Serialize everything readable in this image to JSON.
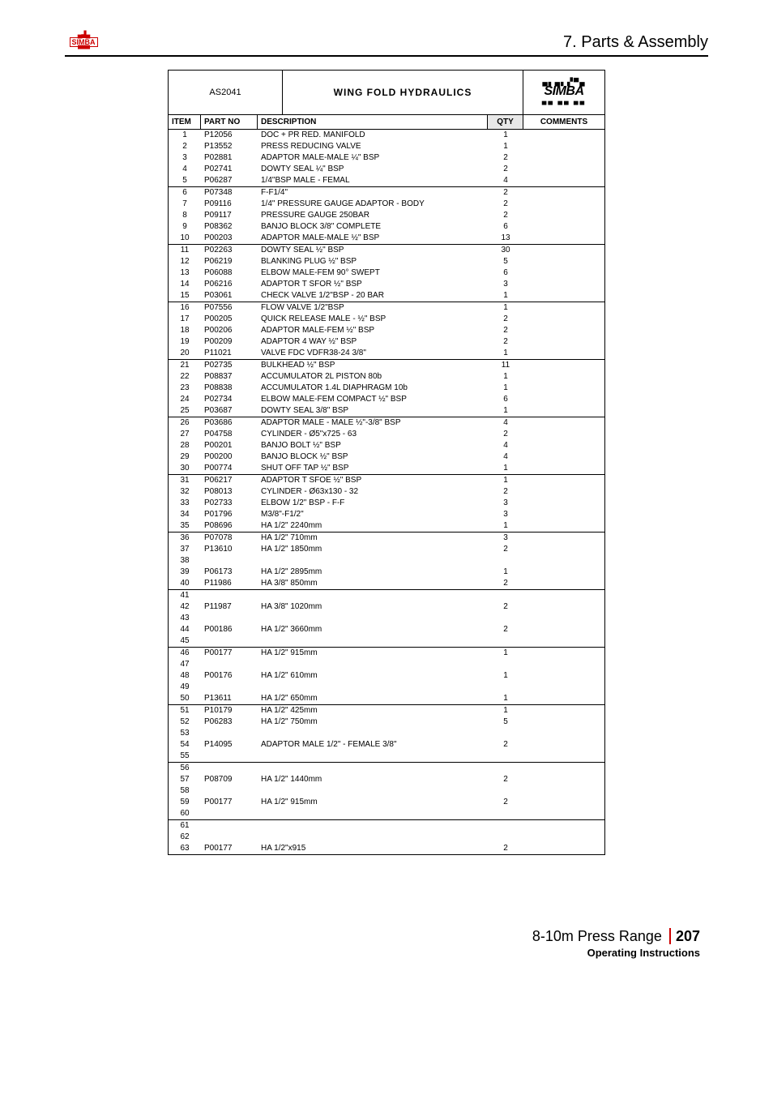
{
  "header": {
    "section_title": "7. Parts & Assembly",
    "logo_small_name": "SIMBA"
  },
  "table_header": {
    "as_code": "AS2041",
    "title": "WING FOLD HYDRAULICS",
    "logo_name": "SIMBA"
  },
  "columns": {
    "item": "ITEM",
    "part": "PART NO",
    "desc": "DESCRIPTION",
    "qty": "QTY",
    "comm": "COMMENTS"
  },
  "groups": [
    [
      {
        "item": "1",
        "part": "P12056",
        "desc": "DOC + PR RED. MANIFOLD",
        "qty": "1"
      },
      {
        "item": "2",
        "part": "P13552",
        "desc": "PRESS REDUCING VALVE",
        "qty": "1"
      },
      {
        "item": "3",
        "part": "P02881",
        "desc": "ADAPTOR MALE-MALE ¼\" BSP",
        "qty": "2"
      },
      {
        "item": "4",
        "part": "P02741",
        "desc": "DOWTY SEAL ¼\" BSP",
        "qty": "2"
      },
      {
        "item": "5",
        "part": "P06287",
        "desc": "1/4\"BSP MALE - FEMAL",
        "qty": "4"
      }
    ],
    [
      {
        "item": "6",
        "part": "P07348",
        "desc": "F-F1/4\"",
        "qty": "2"
      },
      {
        "item": "7",
        "part": "P09116",
        "desc": "1/4\" PRESSURE GAUGE ADAPTOR - BODY",
        "qty": "2"
      },
      {
        "item": "8",
        "part": "P09117",
        "desc": "PRESSURE GAUGE 250BAR",
        "qty": "2"
      },
      {
        "item": "9",
        "part": "P08362",
        "desc": "BANJO BLOCK 3/8\" COMPLETE",
        "qty": "6"
      },
      {
        "item": "10",
        "part": "P00203",
        "desc": "ADAPTOR MALE-MALE ½\" BSP",
        "qty": "13"
      }
    ],
    [
      {
        "item": "11",
        "part": "P02263",
        "desc": "DOWTY SEAL ½\" BSP",
        "qty": "30"
      },
      {
        "item": "12",
        "part": "P06219",
        "desc": "BLANKING PLUG ½\" BSP",
        "qty": "5"
      },
      {
        "item": "13",
        "part": "P06088",
        "desc": "ELBOW MALE-FEM 90° SWEPT",
        "qty": "6"
      },
      {
        "item": "14",
        "part": "P06216",
        "desc": "ADAPTOR T SFOR ½\" BSP",
        "qty": "3"
      },
      {
        "item": "15",
        "part": "P03061",
        "desc": "CHECK VALVE 1/2\"BSP - 20 BAR",
        "qty": "1"
      }
    ],
    [
      {
        "item": "16",
        "part": "P07556",
        "desc": "FLOW VALVE 1/2\"BSP",
        "qty": "1"
      },
      {
        "item": "17",
        "part": "P00205",
        "desc": "QUICK RELEASE MALE - ½\" BSP",
        "qty": "2"
      },
      {
        "item": "18",
        "part": "P00206",
        "desc": "ADAPTOR MALE-FEM ½\" BSP",
        "qty": "2"
      },
      {
        "item": "19",
        "part": "P00209",
        "desc": "ADAPTOR 4 WAY ½\" BSP",
        "qty": "2"
      },
      {
        "item": "20",
        "part": "P11021",
        "desc": "VALVE FDC VDFR38-24 3/8\"",
        "qty": "1"
      }
    ],
    [
      {
        "item": "21",
        "part": "P02735",
        "desc": "BULKHEAD ½\" BSP",
        "qty": "11"
      },
      {
        "item": "22",
        "part": "P08837",
        "desc": "ACCUMULATOR 2L PISTON 80b",
        "qty": "1"
      },
      {
        "item": "23",
        "part": "P08838",
        "desc": "ACCUMULATOR 1.4L DIAPHRAGM 10b",
        "qty": "1"
      },
      {
        "item": "24",
        "part": "P02734",
        "desc": "ELBOW MALE-FEM COMPACT ½\" BSP",
        "qty": "6"
      },
      {
        "item": "25",
        "part": "P03687",
        "desc": "DOWTY SEAL 3/8\" BSP",
        "qty": "1"
      }
    ],
    [
      {
        "item": "26",
        "part": "P03686",
        "desc": "ADAPTOR MALE - MALE ½\"-3/8\" BSP",
        "qty": "4"
      },
      {
        "item": "27",
        "part": "P04758",
        "desc": "CYLINDER - Ø5\"x725 - 63",
        "qty": "2"
      },
      {
        "item": "28",
        "part": "P00201",
        "desc": "BANJO BOLT ½\" BSP",
        "qty": "4"
      },
      {
        "item": "29",
        "part": "P00200",
        "desc": "BANJO BLOCK ½\" BSP",
        "qty": "4"
      },
      {
        "item": "30",
        "part": "P00774",
        "desc": "SHUT OFF TAP ½\" BSP",
        "qty": "1"
      }
    ],
    [
      {
        "item": "31",
        "part": "P06217",
        "desc": "ADAPTOR T SFOE ½\" BSP",
        "qty": "1"
      },
      {
        "item": "32",
        "part": "P08013",
        "desc": "CYLINDER - Ø63x130 - 32",
        "qty": "2"
      },
      {
        "item": "33",
        "part": "P02733",
        "desc": "ELBOW 1/2\" BSP - F-F",
        "qty": "3"
      },
      {
        "item": "34",
        "part": "P01796",
        "desc": "M3/8\"-F1/2\"",
        "qty": "3"
      },
      {
        "item": "35",
        "part": "P08696",
        "desc": "HA 1/2\" 2240mm",
        "qty": "1"
      }
    ],
    [
      {
        "item": "36",
        "part": "P07078",
        "desc": "HA 1/2\" 710mm",
        "qty": "3"
      },
      {
        "item": "37",
        "part": "P13610",
        "desc": "HA 1/2\" 1850mm",
        "qty": "2"
      },
      {
        "item": "38",
        "part": "",
        "desc": "",
        "qty": ""
      },
      {
        "item": "39",
        "part": "P06173",
        "desc": "HA 1/2\" 2895mm",
        "qty": "1"
      },
      {
        "item": "40",
        "part": "P11986",
        "desc": "HA 3/8\" 850mm",
        "qty": "2"
      }
    ],
    [
      {
        "item": "41",
        "part": "",
        "desc": "",
        "qty": ""
      },
      {
        "item": "42",
        "part": "P11987",
        "desc": "HA 3/8\" 1020mm",
        "qty": "2"
      },
      {
        "item": "43",
        "part": "",
        "desc": "",
        "qty": ""
      },
      {
        "item": "44",
        "part": "P00186",
        "desc": "HA 1/2\" 3660mm",
        "qty": "2"
      },
      {
        "item": "45",
        "part": "",
        "desc": "",
        "qty": ""
      }
    ],
    [
      {
        "item": "46",
        "part": "P00177",
        "desc": "HA 1/2\" 915mm",
        "qty": "1"
      },
      {
        "item": "47",
        "part": "",
        "desc": "",
        "qty": ""
      },
      {
        "item": "48",
        "part": "P00176",
        "desc": "HA 1/2\" 610mm",
        "qty": "1"
      },
      {
        "item": "49",
        "part": "",
        "desc": "",
        "qty": ""
      },
      {
        "item": "50",
        "part": "P13611",
        "desc": "HA 1/2\" 650mm",
        "qty": "1"
      }
    ],
    [
      {
        "item": "51",
        "part": "P10179",
        "desc": "HA 1/2\" 425mm",
        "qty": "1"
      },
      {
        "item": "52",
        "part": "P06283",
        "desc": "HA 1/2\" 750mm",
        "qty": "5"
      },
      {
        "item": "53",
        "part": "",
        "desc": "",
        "qty": ""
      },
      {
        "item": "54",
        "part": "P14095",
        "desc": "ADAPTOR MALE 1/2\" - FEMALE 3/8\"",
        "qty": "2"
      },
      {
        "item": "55",
        "part": "",
        "desc": "",
        "qty": ""
      }
    ],
    [
      {
        "item": "56",
        "part": "",
        "desc": "",
        "qty": ""
      },
      {
        "item": "57",
        "part": "P08709",
        "desc": "HA 1/2\" 1440mm",
        "qty": "2"
      },
      {
        "item": "58",
        "part": "",
        "desc": "",
        "qty": ""
      },
      {
        "item": "59",
        "part": "P00177",
        "desc": "HA 1/2\" 915mm",
        "qty": "2"
      },
      {
        "item": "60",
        "part": "",
        "desc": "",
        "qty": ""
      }
    ],
    [
      {
        "item": "61",
        "part": "",
        "desc": "",
        "qty": ""
      },
      {
        "item": "62",
        "part": "",
        "desc": "",
        "qty": ""
      },
      {
        "item": "63",
        "part": "P00177",
        "desc": "HA 1/2\"x915",
        "qty": "2"
      }
    ]
  ],
  "footer": {
    "range": "8-10m Press Range",
    "page_num": "207",
    "subtitle": "Operating Instructions"
  }
}
